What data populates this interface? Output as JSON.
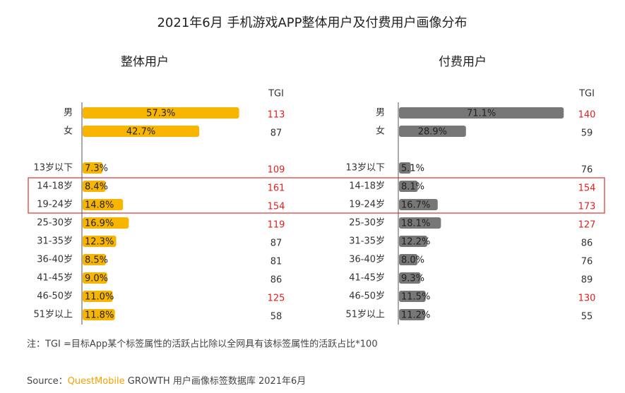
{
  "title": "2021年6月 手机游戏APP整体用户及付费用户画像分布",
  "note": "注：TGI =目标App某个标签属性的活跃占比除以全网具有该标签属性的活跃占比*100",
  "source": {
    "label": "Source：",
    "brand": "QuestMobile",
    "text": "GROWTH 用户画像标签数据库 2021年6月"
  },
  "chart_data": [
    {
      "type": "bar",
      "title": "整体用户",
      "color": "#f7b500",
      "xlim": [
        0,
        60
      ],
      "categories": [
        "男",
        "女",
        null,
        "13岁以下",
        "14-18岁",
        "19-24岁",
        "25-30岁",
        "31-35岁",
        "36-40岁",
        "41-45岁",
        "46-50岁",
        "51岁以上"
      ],
      "values": [
        57.3,
        42.7,
        null,
        7.3,
        8.4,
        14.8,
        16.9,
        12.3,
        8.5,
        9.0,
        11.0,
        11.8
      ],
      "value_labels": [
        "57.3%",
        "42.7%",
        null,
        "7.3%",
        "8.4%",
        "14.8%",
        "16.9%",
        "12.3%",
        "8.5%",
        "9.0%",
        "11.0%",
        "11.8%"
      ],
      "tgi_label": "TGI",
      "tgi": [
        113,
        87,
        null,
        109,
        161,
        154,
        119,
        87,
        81,
        86,
        125,
        58
      ],
      "tgi_colors": [
        "#e02020",
        "#333333",
        null,
        "#e02020",
        "#e02020",
        "#e02020",
        "#e02020",
        "#333333",
        "#333333",
        "#333333",
        "#e02020",
        "#333333"
      ]
    },
    {
      "type": "bar",
      "title": "付费用户",
      "color": "#777777",
      "xlim": [
        0,
        75
      ],
      "categories": [
        "男",
        "女",
        null,
        "13岁以下",
        "14-18岁",
        "19-24岁",
        "25-30岁",
        "31-35岁",
        "36-40岁",
        "41-45岁",
        "46-50岁",
        "51岁以上"
      ],
      "values": [
        71.1,
        28.9,
        null,
        5.1,
        8.1,
        16.7,
        18.1,
        12.2,
        8.0,
        9.3,
        11.5,
        11.2
      ],
      "value_labels": [
        "71.1%",
        "28.9%",
        null,
        "5.1%",
        "8.1%",
        "16.7%",
        "18.1%",
        "12.2%",
        "8.0%",
        "9.3%",
        "11.5%",
        "11.2%"
      ],
      "tgi_label": "TGI",
      "tgi": [
        140,
        59,
        null,
        76,
        154,
        173,
        127,
        86,
        76,
        89,
        130,
        55
      ],
      "tgi_colors": [
        "#e02020",
        "#333333",
        null,
        "#333333",
        "#e02020",
        "#e02020",
        "#e02020",
        "#333333",
        "#333333",
        "#333333",
        "#e02020",
        "#333333"
      ]
    }
  ]
}
